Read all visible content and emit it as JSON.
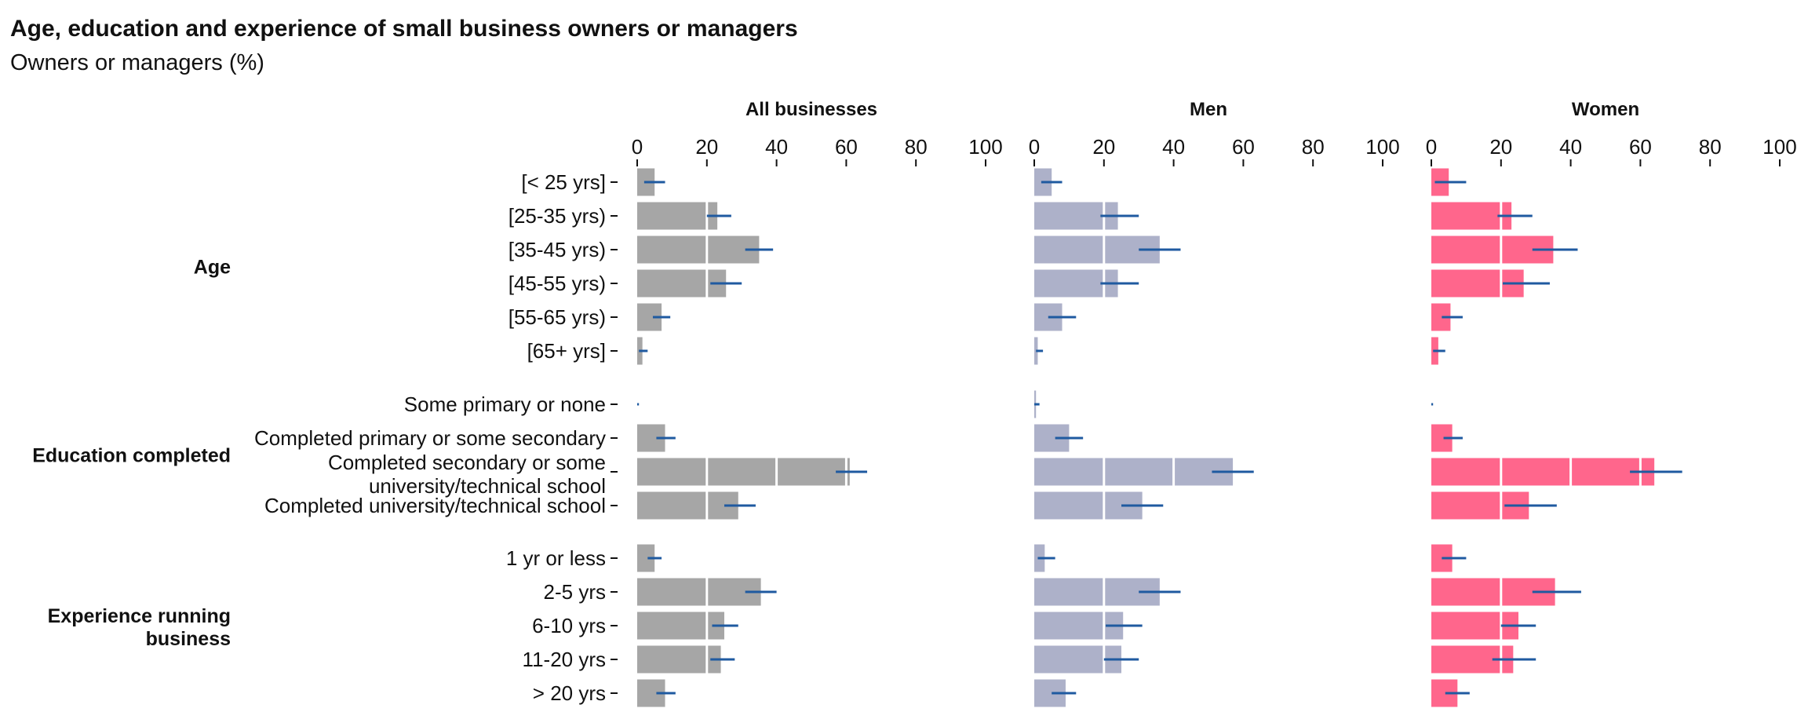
{
  "title": "Age, education and experience of small business owners or managers",
  "subtitle": "Owners or managers (%)",
  "chart_data": {
    "type": "bar",
    "orientation": "horizontal",
    "xlim": [
      0,
      100
    ],
    "ticks": [
      0,
      20,
      40,
      60,
      80,
      100
    ],
    "tick_labels": [
      "0",
      "20",
      "40",
      "60",
      "80",
      "100"
    ],
    "grid": false,
    "legend": "none",
    "groups": [
      {
        "label": "Age",
        "categories": [
          "[< 25 yrs]",
          "[25-35 yrs)",
          "[35-45 yrs)",
          "[45-55 yrs)",
          "[55-65 yrs)",
          "[65+ yrs]"
        ]
      },
      {
        "label": "Education completed",
        "categories": [
          "Some primary or none",
          "Completed primary or some secondary",
          "Completed secondary or some university/technical school",
          "Completed university/technical school"
        ]
      },
      {
        "label": "Experience running business",
        "categories": [
          "1 yr or less",
          "2-5 yrs",
          "6-10 yrs",
          "11-20 yrs",
          "> 20 yrs"
        ]
      }
    ],
    "series": [
      {
        "name": "All businesses",
        "color": "#a6a6a6",
        "values": [
          5,
          23,
          35,
          25.5,
          7,
          1.5,
          0,
          8,
          61,
          29,
          5,
          35.5,
          25,
          24,
          8
        ],
        "ci_low": [
          2,
          20,
          31,
          21,
          4.5,
          0.5,
          0,
          5.5,
          57,
          25,
          3,
          31,
          21.5,
          21,
          5.5
        ],
        "ci_high": [
          8,
          27,
          39,
          30,
          9.5,
          3,
          0.5,
          11,
          66,
          34,
          7,
          40,
          29,
          28,
          11
        ]
      },
      {
        "name": "Men",
        "color": "#adb1c9",
        "values": [
          5,
          24,
          36,
          24,
          8,
          1,
          0.5,
          10,
          57,
          31,
          3,
          36,
          25.5,
          25,
          9
        ],
        "ci_low": [
          2,
          19,
          30,
          19,
          4,
          0.5,
          0,
          6,
          51,
          25,
          1,
          30,
          20.5,
          20,
          5
        ],
        "ci_high": [
          8,
          30,
          42,
          30,
          12,
          2.5,
          1.5,
          14,
          63,
          37,
          6,
          42,
          31,
          30,
          12
        ]
      },
      {
        "name": "Women",
        "color": "#ff668c",
        "values": [
          5,
          23,
          35,
          26.5,
          5.5,
          2,
          0,
          6,
          64,
          28,
          6,
          35.5,
          25,
          23.5,
          7.5
        ],
        "ci_low": [
          1,
          19,
          29,
          20.5,
          3,
          0.5,
          0,
          3.5,
          57,
          21,
          3,
          29,
          20,
          17.5,
          4
        ],
        "ci_high": [
          10,
          29,
          42,
          34,
          9,
          4,
          0.5,
          9,
          72,
          36,
          10,
          43,
          30,
          30,
          11
        ]
      }
    ]
  }
}
